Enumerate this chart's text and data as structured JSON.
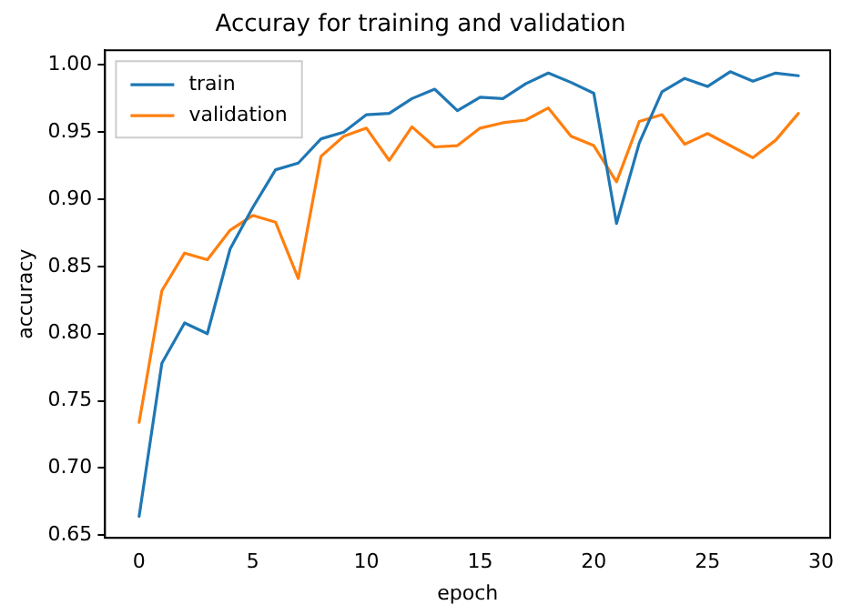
{
  "chart_data": {
    "type": "line",
    "title": "Accuray for training and validation",
    "xlabel": "epoch",
    "ylabel": "accuracy",
    "x": [
      0,
      1,
      2,
      3,
      4,
      5,
      6,
      7,
      8,
      9,
      10,
      11,
      12,
      13,
      14,
      15,
      16,
      17,
      18,
      19,
      20,
      21,
      22,
      23,
      24,
      25,
      26,
      27,
      28,
      29
    ],
    "series": [
      {
        "name": "train",
        "color": "#1f77b4",
        "values": [
          0.664,
          0.778,
          0.808,
          0.8,
          0.863,
          0.894,
          0.922,
          0.927,
          0.945,
          0.95,
          0.963,
          0.964,
          0.975,
          0.982,
          0.966,
          0.976,
          0.975,
          0.986,
          0.994,
          0.987,
          0.979,
          0.882,
          0.942,
          0.98,
          0.99,
          0.984,
          0.995,
          0.988,
          0.994,
          0.992
        ]
      },
      {
        "name": "validation",
        "color": "#ff7f0e",
        "values": [
          0.734,
          0.832,
          0.86,
          0.855,
          0.877,
          0.888,
          0.883,
          0.841,
          0.932,
          0.947,
          0.953,
          0.929,
          0.954,
          0.939,
          0.94,
          0.953,
          0.957,
          0.959,
          0.968,
          0.947,
          0.94,
          0.913,
          0.958,
          0.963,
          0.941,
          0.949,
          0.94,
          0.931,
          0.944,
          0.964
        ]
      }
    ],
    "xlim": [
      -1.5,
      30.4
    ],
    "xticks": [
      0,
      5,
      10,
      15,
      20,
      25,
      30
    ],
    "ylim": [
      0.648,
      1.011
    ],
    "yticks": [
      {
        "value": 0.65,
        "label": "0.65"
      },
      {
        "value": 0.7,
        "label": "0.70"
      },
      {
        "value": 0.75,
        "label": "0.75"
      },
      {
        "value": 0.8,
        "label": "0.80"
      },
      {
        "value": 0.85,
        "label": "0.85"
      },
      {
        "value": 0.9,
        "label": "0.90"
      },
      {
        "value": 0.95,
        "label": "0.95"
      },
      {
        "value": 1.0,
        "label": "1.00"
      }
    ],
    "grid": false,
    "legend": "top left",
    "marker": "none",
    "line_style": "solid"
  }
}
